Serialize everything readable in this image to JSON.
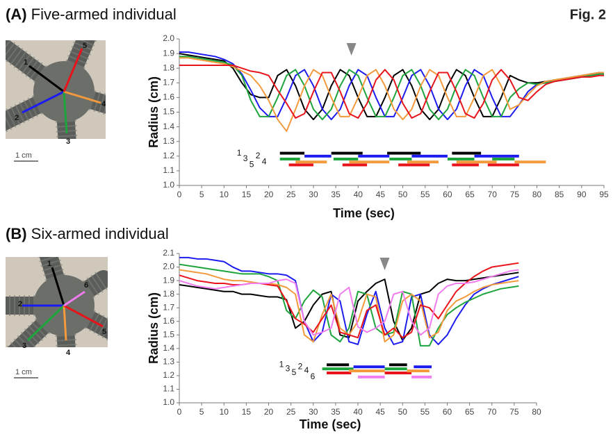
{
  "figure_label": "Fig. 2",
  "chart_data": [
    {
      "type": "line",
      "panel_label": "(A)",
      "title": "Five-armed individual",
      "xlabel": "Time (sec)",
      "ylabel": "Radius (cm)",
      "x": [
        0,
        2,
        4,
        6,
        8,
        10,
        12,
        14,
        16,
        18,
        20,
        22,
        24,
        26,
        28,
        30,
        32,
        34,
        36,
        38,
        40,
        42,
        44,
        46,
        48,
        50,
        52,
        54,
        56,
        58,
        60,
        62,
        64,
        66,
        68,
        70,
        72,
        74,
        76,
        78,
        80,
        82,
        84,
        86,
        88,
        90,
        92,
        94,
        95
      ],
      "series": [
        {
          "color": "#000000",
          "values": [
            1.9,
            1.89,
            1.88,
            1.87,
            1.86,
            1.85,
            1.8,
            1.7,
            1.62,
            1.6,
            1.6,
            1.75,
            1.79,
            1.68,
            1.52,
            1.45,
            1.52,
            1.68,
            1.79,
            1.75,
            1.6,
            1.47,
            1.47,
            1.6,
            1.75,
            1.79,
            1.68,
            1.52,
            1.45,
            1.52,
            1.68,
            1.79,
            1.75,
            1.6,
            1.47,
            1.47,
            1.6,
            1.75,
            1.72,
            1.7,
            1.7,
            1.71,
            1.72,
            1.73,
            1.74,
            1.75,
            1.76,
            1.77,
            1.77
          ]
        },
        {
          "color": "#1c1cf0",
          "values": [
            1.91,
            1.91,
            1.9,
            1.89,
            1.88,
            1.86,
            1.83,
            1.76,
            1.65,
            1.53,
            1.47,
            1.47,
            1.6,
            1.75,
            1.79,
            1.68,
            1.52,
            1.45,
            1.52,
            1.68,
            1.79,
            1.75,
            1.6,
            1.47,
            1.47,
            1.6,
            1.75,
            1.79,
            1.68,
            1.52,
            1.45,
            1.52,
            1.68,
            1.79,
            1.75,
            1.6,
            1.47,
            1.47,
            1.55,
            1.64,
            1.69,
            1.7,
            1.71,
            1.72,
            1.73,
            1.74,
            1.75,
            1.76,
            1.76
          ]
        },
        {
          "color": "#1ea43c",
          "values": [
            1.88,
            1.88,
            1.87,
            1.86,
            1.85,
            1.84,
            1.82,
            1.75,
            1.58,
            1.47,
            1.47,
            1.6,
            1.75,
            1.79,
            1.68,
            1.52,
            1.45,
            1.52,
            1.68,
            1.79,
            1.75,
            1.6,
            1.47,
            1.47,
            1.6,
            1.75,
            1.79,
            1.68,
            1.52,
            1.45,
            1.52,
            1.68,
            1.79,
            1.75,
            1.6,
            1.47,
            1.47,
            1.6,
            1.66,
            1.7,
            1.69,
            1.7,
            1.71,
            1.72,
            1.73,
            1.74,
            1.75,
            1.76,
            1.76
          ]
        },
        {
          "color": "#f39a3c",
          "values": [
            1.87,
            1.87,
            1.86,
            1.85,
            1.84,
            1.83,
            1.81,
            1.78,
            1.75,
            1.68,
            1.58,
            1.45,
            1.37,
            1.52,
            1.68,
            1.79,
            1.75,
            1.6,
            1.47,
            1.47,
            1.6,
            1.75,
            1.79,
            1.68,
            1.52,
            1.45,
            1.52,
            1.68,
            1.79,
            1.75,
            1.6,
            1.47,
            1.47,
            1.6,
            1.75,
            1.79,
            1.68,
            1.52,
            1.55,
            1.62,
            1.68,
            1.71,
            1.72,
            1.73,
            1.74,
            1.75,
            1.76,
            1.77,
            1.77
          ]
        },
        {
          "color": "#e8141c",
          "values": [
            1.82,
            1.82,
            1.82,
            1.82,
            1.82,
            1.82,
            1.82,
            1.8,
            1.78,
            1.77,
            1.75,
            1.65,
            1.56,
            1.46,
            1.49,
            1.64,
            1.77,
            1.77,
            1.64,
            1.49,
            1.46,
            1.56,
            1.72,
            1.79,
            1.72,
            1.56,
            1.46,
            1.49,
            1.64,
            1.77,
            1.77,
            1.64,
            1.49,
            1.46,
            1.56,
            1.72,
            1.79,
            1.72,
            1.6,
            1.58,
            1.64,
            1.69,
            1.71,
            1.72,
            1.73,
            1.74,
            1.74,
            1.75,
            1.75
          ]
        }
      ],
      "bars": [
        {
          "label": "1",
          "color": "#000000",
          "y": 1.22,
          "intervals": [
            [
              22.5,
              28
            ],
            [
              34,
              41
            ],
            [
              46.5,
              54
            ],
            [
              61,
              67.5
            ]
          ]
        },
        {
          "label": "3",
          "color": "#1ea43c",
          "y": 1.18,
          "intervals": [
            [
              22.5,
              27
            ],
            [
              34.5,
              40
            ],
            [
              47,
              52
            ],
            [
              60,
              66
            ],
            [
              70,
              75
            ]
          ]
        },
        {
          "label": "5",
          "color": "#e8141c",
          "y": 1.14,
          "intervals": [
            [
              24.5,
              30
            ],
            [
              36.5,
              42
            ],
            [
              49,
              56
            ],
            [
              61,
              67
            ],
            [
              69,
              76
            ]
          ]
        },
        {
          "label": "2",
          "color": "#1c1cf0",
          "y": 1.2,
          "intervals": [
            [
              28,
              34
            ],
            [
              40,
              47
            ],
            [
              52,
              60
            ],
            [
              66,
              76
            ]
          ]
        },
        {
          "label": "4",
          "color": "#f39a3c",
          "y": 1.16,
          "intervals": [
            [
              26,
              33
            ],
            [
              38,
              47
            ],
            [
              51,
              58
            ],
            [
              62,
              71
            ],
            [
              75,
              82
            ]
          ]
        }
      ],
      "arrow_x": 38.5,
      "xlim": [
        0,
        95
      ],
      "xticks": [
        0,
        5,
        10,
        15,
        20,
        25,
        30,
        35,
        40,
        45,
        50,
        55,
        60,
        65,
        70,
        75,
        80,
        85,
        90,
        95
      ],
      "ylim": [
        1.0,
        2.0
      ],
      "yticks": [
        {
          "value": 1.0,
          "label": "1.0"
        },
        1.1,
        1.2,
        1.3,
        1.4,
        1.5,
        1.6,
        1.7,
        1.8,
        1.9,
        {
          "value": 2.0,
          "label": "2.0"
        }
      ],
      "photo": {
        "arm_labels": [
          "1",
          "2",
          "3",
          "4",
          "5"
        ],
        "scale_bar": "1 cm"
      }
    },
    {
      "type": "line",
      "panel_label": "(B)",
      "title": "Six-armed individual",
      "xlabel": "Time (sec)",
      "ylabel": "Radius (cm)",
      "x": [
        0,
        2,
        4,
        6,
        8,
        10,
        12,
        14,
        16,
        18,
        20,
        22,
        24,
        26,
        28,
        30,
        32,
        34,
        36,
        38,
        40,
        42,
        44,
        46,
        48,
        50,
        52,
        54,
        56,
        58,
        60,
        62,
        64,
        66,
        68,
        70,
        72,
        74,
        76
      ],
      "series": [
        {
          "color": "#000000",
          "values": [
            1.87,
            1.86,
            1.85,
            1.84,
            1.83,
            1.82,
            1.82,
            1.8,
            1.8,
            1.79,
            1.78,
            1.78,
            1.76,
            1.55,
            1.6,
            1.72,
            1.8,
            1.82,
            1.5,
            1.48,
            1.75,
            1.82,
            1.88,
            1.91,
            1.6,
            1.46,
            1.55,
            1.8,
            1.82,
            1.88,
            1.91,
            1.9,
            1.9,
            1.91,
            1.92,
            1.93,
            1.94,
            1.95,
            1.96
          ]
        },
        {
          "color": "#1c1cf0",
          "values": [
            2.07,
            2.07,
            2.06,
            2.06,
            2.05,
            2.04,
            2.0,
            1.97,
            1.97,
            1.96,
            1.95,
            1.95,
            1.94,
            1.9,
            1.6,
            1.45,
            1.52,
            1.8,
            1.75,
            1.45,
            1.43,
            1.65,
            1.82,
            1.55,
            1.43,
            1.45,
            1.78,
            1.8,
            1.5,
            1.43,
            1.5,
            1.62,
            1.72,
            1.8,
            1.84,
            1.87,
            1.89,
            1.91,
            1.93
          ]
        },
        {
          "color": "#1ea43c",
          "values": [
            2.02,
            2.01,
            2.0,
            1.99,
            1.98,
            1.97,
            1.96,
            1.95,
            1.95,
            1.95,
            1.93,
            1.9,
            1.68,
            1.62,
            1.75,
            1.83,
            1.78,
            1.5,
            1.45,
            1.55,
            1.82,
            1.8,
            1.55,
            1.5,
            1.52,
            1.82,
            1.8,
            1.42,
            1.42,
            1.55,
            1.65,
            1.7,
            1.74,
            1.77,
            1.8,
            1.82,
            1.84,
            1.85,
            1.86
          ]
        },
        {
          "color": "#f39a3c",
          "values": [
            1.98,
            1.97,
            1.96,
            1.95,
            1.93,
            1.91,
            1.9,
            1.9,
            1.89,
            1.88,
            1.88,
            1.87,
            1.85,
            1.8,
            1.5,
            1.45,
            1.65,
            1.8,
            1.55,
            1.5,
            1.6,
            1.8,
            1.78,
            1.45,
            1.5,
            1.75,
            1.8,
            1.75,
            1.48,
            1.52,
            1.68,
            1.75,
            1.78,
            1.82,
            1.85,
            1.87,
            1.88,
            1.89,
            1.9
          ]
        },
        {
          "color": "#e8141c",
          "values": [
            1.94,
            1.92,
            1.9,
            1.89,
            1.88,
            1.88,
            1.87,
            1.87,
            1.88,
            1.88,
            1.87,
            1.86,
            1.75,
            1.62,
            1.58,
            1.52,
            1.62,
            1.72,
            1.52,
            1.5,
            1.48,
            1.68,
            1.72,
            1.5,
            1.55,
            1.48,
            1.52,
            1.72,
            1.7,
            1.62,
            1.72,
            1.82,
            1.88,
            1.93,
            1.97,
            2.0,
            2.01,
            2.02,
            2.03
          ]
        },
        {
          "color": "#f07cf0",
          "values": [
            1.9,
            1.88,
            1.86,
            1.85,
            1.84,
            1.85,
            1.86,
            1.87,
            1.88,
            1.88,
            1.88,
            1.9,
            1.91,
            1.88,
            1.6,
            1.5,
            1.52,
            1.55,
            1.8,
            1.85,
            1.56,
            1.52,
            1.55,
            1.6,
            1.8,
            1.82,
            1.6,
            1.5,
            1.55,
            1.8,
            1.86,
            1.88,
            1.88,
            1.89,
            1.91,
            1.93,
            1.95,
            1.97,
            1.98
          ]
        }
      ],
      "bars": [
        {
          "label": "1",
          "color": "#000000",
          "y": 1.28,
          "intervals": [
            [
              33,
              38
            ],
            [
              47,
              51
            ]
          ]
        },
        {
          "label": "3",
          "color": "#1ea43c",
          "y": 1.25,
          "intervals": [
            [
              32,
              39
            ],
            [
              46,
              51
            ]
          ]
        },
        {
          "label": "5",
          "color": "#e8141c",
          "y": 1.22,
          "intervals": [
            [
              33,
              38.5
            ],
            [
              46,
              52
            ]
          ]
        },
        {
          "label": "2",
          "color": "#1c1cf0",
          "y": 1.265,
          "intervals": [
            [
              39,
              46
            ],
            [
              52.5,
              56.5
            ]
          ]
        },
        {
          "label": "4",
          "color": "#f39a3c",
          "y": 1.235,
          "intervals": [
            [
              38,
              46
            ],
            [
              51,
              56
            ]
          ]
        },
        {
          "label": "6",
          "color": "#f07cf0",
          "y": 1.19,
          "intervals": [
            [
              40,
              46
            ],
            [
              52,
              56.5
            ]
          ]
        }
      ],
      "arrow_x": 46,
      "xlim": [
        0,
        80
      ],
      "xticks": [
        0,
        5,
        10,
        15,
        20,
        25,
        30,
        35,
        40,
        45,
        50,
        55,
        60,
        65,
        70,
        75,
        80
      ],
      "ylim": [
        1.0,
        2.1
      ],
      "yticks": [
        {
          "value": 1.0,
          "label": "1.0"
        },
        1.1,
        1.2,
        1.3,
        1.4,
        1.5,
        1.6,
        1.7,
        1.8,
        1.9,
        {
          "value": 2.0,
          "label": "2.0"
        },
        2.1
      ],
      "photo": {
        "arm_labels": [
          "1",
          "2",
          "3",
          "4",
          "5",
          "6"
        ],
        "scale_bar": "1 cm"
      }
    }
  ]
}
